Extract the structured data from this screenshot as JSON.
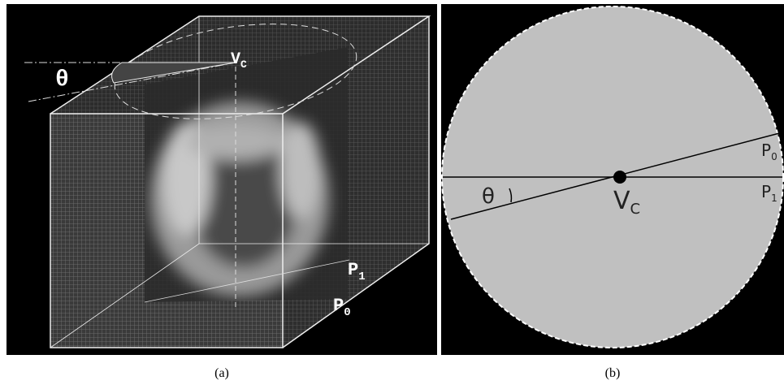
{
  "panels": [
    {
      "caption": "(a)",
      "labels": {
        "theta": "θ",
        "vc": {
          "main": "V",
          "sub": "C"
        },
        "p1": {
          "main": "P",
          "sub": "1"
        },
        "p0": {
          "main": "P",
          "sub": "0"
        }
      }
    },
    {
      "caption": "(b)",
      "labels": {
        "theta": "θ",
        "vc": {
          "main": "V",
          "sub": "C"
        },
        "p0": {
          "main": "P",
          "sub": "0"
        },
        "p1": {
          "main": "P",
          "sub": "1"
        }
      }
    }
  ]
}
